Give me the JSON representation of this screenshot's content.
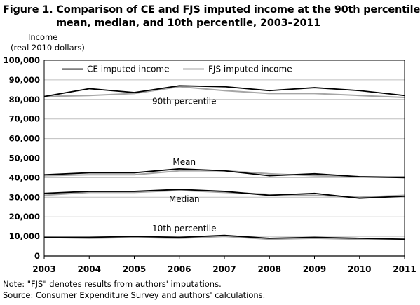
{
  "title_line1": "Figure 1. Comparison of CE and FJS imputed income at the 90th percentile,",
  "title_line2": "mean, median, and 10th percentile,  2003–2011",
  "ylabel_line1": "Income",
  "ylabel_line2": "(real 2010 dollars)",
  "note": "Note: \"FJS\" denotes results from authors' imputations.",
  "source": "Source: Consumer Expenditure  Survey and authors'  calculations.",
  "colors": {
    "ce": "#000000",
    "fjs": "#a6a6a6"
  },
  "chart_data": {
    "type": "line",
    "x": [
      "2003",
      "2004",
      "2005",
      "2006",
      "2007",
      "2008",
      "2009",
      "2010",
      "2011"
    ],
    "ylim": [
      0,
      100000
    ],
    "yticks": [
      "0",
      "10,000",
      "20,000",
      "30,000",
      "40,000",
      "50,000",
      "60,000",
      "70,000",
      "80,000",
      "90,000",
      "100,000"
    ],
    "ytick_values": [
      0,
      10000,
      20000,
      30000,
      40000,
      50000,
      60000,
      70000,
      80000,
      90000,
      100000
    ],
    "grid": true,
    "legend": {
      "position": "top",
      "items": [
        "CE imputed income",
        "FJS imputed income"
      ]
    },
    "groups": [
      {
        "label": "90th percentile",
        "ce": [
          81500,
          85500,
          83500,
          87000,
          86500,
          84500,
          86000,
          84500,
          82000
        ],
        "fjs": [
          81500,
          82000,
          83000,
          86500,
          84500,
          83000,
          83000,
          82000,
          81000
        ]
      },
      {
        "label": "Mean",
        "ce": [
          41500,
          42500,
          42500,
          44500,
          43500,
          41000,
          42000,
          40500,
          40000
        ],
        "fjs": [
          41000,
          41500,
          41500,
          43500,
          43500,
          42000,
          41000,
          40500,
          40500
        ]
      },
      {
        "label": "Median",
        "ce": [
          32000,
          33000,
          33000,
          34000,
          33000,
          31000,
          32000,
          29500,
          30500
        ],
        "fjs": [
          31000,
          32500,
          32500,
          33500,
          32500,
          31500,
          31000,
          30000,
          31000
        ]
      },
      {
        "label": "10th percentile",
        "ce": [
          9500,
          9500,
          10000,
          9500,
          10500,
          9000,
          9500,
          9000,
          8500
        ],
        "fjs": [
          9500,
          9000,
          9500,
          9000,
          10000,
          8500,
          9000,
          8500,
          8500
        ]
      }
    ]
  }
}
